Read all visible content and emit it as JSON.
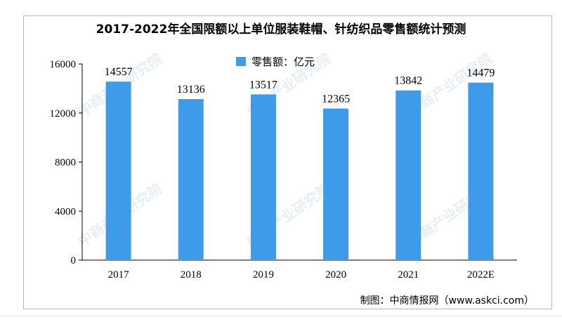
{
  "chart_data": {
    "type": "bar",
    "title": "2017-2022年全国限额以上单位服装鞋帽、针纺织品零售额统计预测",
    "categories": [
      "2017",
      "2018",
      "2019",
      "2020",
      "2021",
      "2022E"
    ],
    "series": [
      {
        "name": "零售额：亿元",
        "values": [
          14557,
          13136,
          13517,
          12365,
          13842,
          14479
        ]
      }
    ],
    "ylim": [
      0,
      16000
    ],
    "yticks": [
      "0",
      "4000",
      "8000",
      "12000",
      "16000"
    ],
    "xlabel": "",
    "ylabel": "",
    "grid": false,
    "legend_position": "top-center",
    "data_labels": true,
    "colors": {
      "bar": "#3d9be9",
      "axis": "#000000"
    }
  },
  "credit": "制图：中商情报网（www.askci.com）",
  "watermark": "中商产业研究院"
}
